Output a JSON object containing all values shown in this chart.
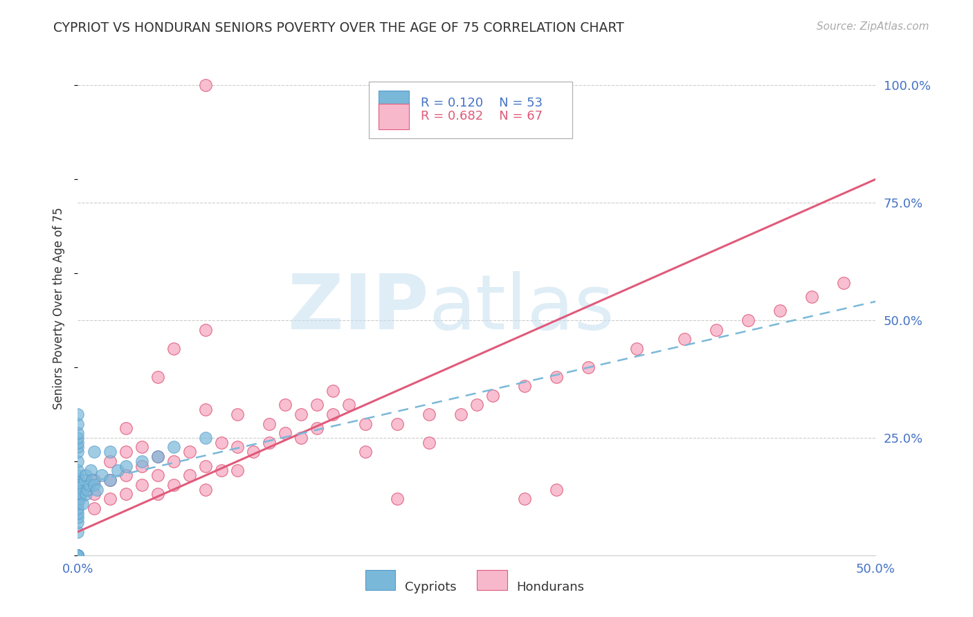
{
  "title": "CYPRIOT VS HONDURAN SENIORS POVERTY OVER THE AGE OF 75 CORRELATION CHART",
  "source": "Source: ZipAtlas.com",
  "tick_color": "#4472c4",
  "ylabel": "Seniors Poverty Over the Age of 75",
  "xlim": [
    0.0,
    0.5
  ],
  "ylim": [
    0.0,
    1.05
  ],
  "ytick_values": [
    0.0,
    0.25,
    0.5,
    0.75,
    1.0
  ],
  "xtick_values": [
    0.0,
    0.5
  ],
  "xtick_labels": [
    "0.0%",
    "50.0%"
  ],
  "grid_color": "#cccccc",
  "background_color": "#ffffff",
  "cypriot_color": "#7ab8d9",
  "cypriot_edge_color": "#5599cc",
  "honduran_color": "#f7b8cc",
  "honduran_edge_color": "#e05a7a",
  "cypriot_line_color": "#7ab8d9",
  "honduran_line_color": "#e05a7a",
  "watermark_zip_color": "#c5dff0",
  "watermark_atlas_color": "#c5dff0",
  "cypriot_R": "0.120",
  "cypriot_N": "53",
  "honduran_R": "0.682",
  "honduran_N": "67",
  "hon_line_x0": 0.0,
  "hon_line_y0": 0.05,
  "hon_line_x1": 0.5,
  "hon_line_y1": 0.8,
  "cyp_line_x0": 0.0,
  "cyp_line_y0": 0.15,
  "cyp_line_x1": 0.5,
  "cyp_line_y1": 0.54,
  "cypriot_x": [
    0.0,
    0.0,
    0.0,
    0.0,
    0.0,
    0.0,
    0.0,
    0.0,
    0.0,
    0.0,
    0.0,
    0.0,
    0.0,
    0.0,
    0.0,
    0.0,
    0.0,
    0.0,
    0.0,
    0.0,
    0.0,
    0.0,
    0.0,
    0.0,
    0.0,
    0.0,
    0.0,
    0.0,
    0.0,
    0.0,
    0.001,
    0.001,
    0.002,
    0.003,
    0.004,
    0.005,
    0.005,
    0.006,
    0.007,
    0.008,
    0.009,
    0.01,
    0.01,
    0.012,
    0.015,
    0.02,
    0.02,
    0.025,
    0.03,
    0.04,
    0.05,
    0.06,
    0.08
  ],
  "cypriot_y": [
    0.0,
    0.0,
    0.0,
    0.0,
    0.0,
    0.0,
    0.0,
    0.0,
    0.0,
    0.0,
    0.05,
    0.07,
    0.08,
    0.09,
    0.1,
    0.11,
    0.12,
    0.14,
    0.15,
    0.16,
    0.17,
    0.18,
    0.2,
    0.22,
    0.23,
    0.24,
    0.25,
    0.26,
    0.28,
    0.3,
    0.12,
    0.15,
    0.13,
    0.11,
    0.16,
    0.13,
    0.17,
    0.14,
    0.15,
    0.18,
    0.16,
    0.15,
    0.22,
    0.14,
    0.17,
    0.16,
    0.22,
    0.18,
    0.19,
    0.2,
    0.21,
    0.23,
    0.25
  ],
  "honduran_x": [
    0.0,
    0.0,
    0.01,
    0.01,
    0.01,
    0.02,
    0.02,
    0.02,
    0.03,
    0.03,
    0.03,
    0.03,
    0.04,
    0.04,
    0.04,
    0.05,
    0.05,
    0.05,
    0.05,
    0.06,
    0.06,
    0.06,
    0.07,
    0.07,
    0.08,
    0.08,
    0.08,
    0.09,
    0.09,
    0.1,
    0.1,
    0.1,
    0.11,
    0.12,
    0.12,
    0.13,
    0.13,
    0.14,
    0.14,
    0.15,
    0.15,
    0.16,
    0.16,
    0.17,
    0.18,
    0.18,
    0.2,
    0.2,
    0.22,
    0.22,
    0.24,
    0.25,
    0.26,
    0.28,
    0.28,
    0.3,
    0.3,
    0.32,
    0.35,
    0.38,
    0.4,
    0.42,
    0.44,
    0.46,
    0.48,
    0.08,
    0.08
  ],
  "honduran_y": [
    0.12,
    0.15,
    0.1,
    0.13,
    0.16,
    0.12,
    0.16,
    0.2,
    0.13,
    0.17,
    0.22,
    0.27,
    0.15,
    0.19,
    0.23,
    0.13,
    0.17,
    0.21,
    0.38,
    0.15,
    0.2,
    0.44,
    0.17,
    0.22,
    0.14,
    0.19,
    0.31,
    0.18,
    0.24,
    0.18,
    0.23,
    0.3,
    0.22,
    0.24,
    0.28,
    0.26,
    0.32,
    0.25,
    0.3,
    0.27,
    0.32,
    0.3,
    0.35,
    0.32,
    0.22,
    0.28,
    0.12,
    0.28,
    0.24,
    0.3,
    0.3,
    0.32,
    0.34,
    0.36,
    0.12,
    0.38,
    0.14,
    0.4,
    0.44,
    0.46,
    0.48,
    0.5,
    0.52,
    0.55,
    0.58,
    0.48,
    1.0
  ]
}
